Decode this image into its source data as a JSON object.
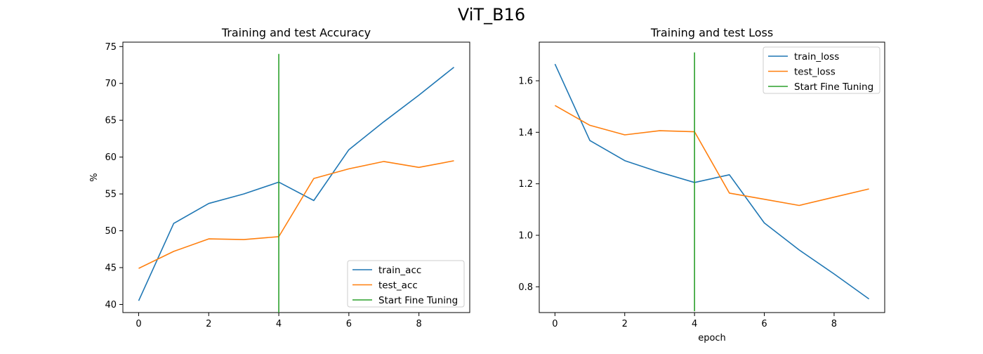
{
  "figure": {
    "suptitle": "ViT_B16"
  },
  "chart_data": [
    {
      "type": "line",
      "title": "Training and test Accuracy",
      "xlabel": "",
      "ylabel": "%",
      "xlim": [
        -0.45,
        9.45
      ],
      "ylim": [
        38.9,
        75.6
      ],
      "xticks": [
        0,
        2,
        4,
        6,
        8
      ],
      "xtick_labels": [
        "0",
        "2",
        "4",
        "6",
        "8"
      ],
      "yticks": [
        40,
        45,
        50,
        55,
        60,
        65,
        70,
        75
      ],
      "ytick_labels": [
        "40",
        "45",
        "50",
        "55",
        "60",
        "65",
        "70",
        "75"
      ],
      "grid": false,
      "legend_position": "lower-right",
      "series": [
        {
          "name": "train_acc",
          "color": "#1f77b4",
          "x": [
            0,
            1,
            2,
            3,
            4,
            5,
            6,
            7,
            8,
            9
          ],
          "y": [
            40.5,
            51.0,
            53.7,
            55.0,
            56.6,
            54.1,
            61.0,
            64.8,
            68.4,
            72.2
          ]
        },
        {
          "name": "test_acc",
          "color": "#ff7f0e",
          "x": [
            0,
            1,
            2,
            3,
            4,
            5,
            6,
            7,
            8,
            9
          ],
          "y": [
            44.9,
            47.2,
            48.9,
            48.8,
            49.2,
            57.1,
            58.4,
            59.4,
            58.6,
            59.5
          ]
        }
      ],
      "vline": {
        "name": "Start Fine Tuning",
        "color": "#2ca02c",
        "x": 4,
        "ymin": 38.9,
        "ymax": 74.0
      }
    },
    {
      "type": "line",
      "title": "Training and test Loss",
      "xlabel": "epoch",
      "ylabel": "",
      "xlim": [
        -0.45,
        9.45
      ],
      "ylim": [
        0.7,
        1.75
      ],
      "xticks": [
        0,
        2,
        4,
        6,
        8
      ],
      "xtick_labels": [
        "0",
        "2",
        "4",
        "6",
        "8"
      ],
      "yticks": [
        0.8,
        1.0,
        1.2,
        1.4,
        1.6
      ],
      "ytick_labels": [
        "0.8",
        "1.0",
        "1.2",
        "1.4",
        "1.6"
      ],
      "grid": false,
      "legend_position": "upper-right",
      "series": [
        {
          "name": "train_loss",
          "color": "#1f77b4",
          "x": [
            0,
            1,
            2,
            3,
            4,
            5,
            6,
            7,
            8,
            9
          ],
          "y": [
            1.665,
            1.368,
            1.29,
            1.245,
            1.205,
            1.235,
            1.048,
            0.943,
            0.85,
            0.753
          ]
        },
        {
          "name": "test_loss",
          "color": "#ff7f0e",
          "x": [
            0,
            1,
            2,
            3,
            4,
            5,
            6,
            7,
            8,
            9
          ],
          "y": [
            1.504,
            1.427,
            1.39,
            1.406,
            1.402,
            1.164,
            1.14,
            1.116,
            1.148,
            1.18
          ]
        }
      ],
      "vline": {
        "name": "Start Fine Tuning",
        "color": "#2ca02c",
        "x": 4,
        "ymin": 0.705,
        "ymax": 1.71
      }
    }
  ]
}
